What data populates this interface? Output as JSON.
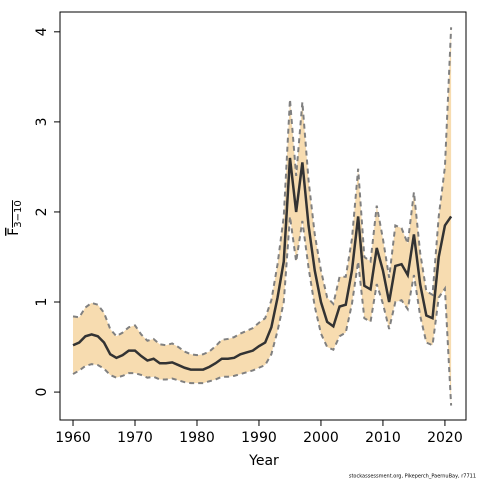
{
  "chart_data": {
    "type": "band_line",
    "xlabel": "Year",
    "ylabel": "F",
    "ylabel_sub": "3−10",
    "footer": "stockassessment.org, Pikeperch_PaernuBay, r7711",
    "line_color": "#333333",
    "band_color": "#f7dcb0",
    "band_edge_color": "#808080",
    "x": [
      1960,
      1961,
      1962,
      1963,
      1964,
      1965,
      1966,
      1967,
      1968,
      1969,
      1970,
      1971,
      1972,
      1973,
      1974,
      1975,
      1976,
      1977,
      1978,
      1979,
      1980,
      1981,
      1982,
      1983,
      1984,
      1985,
      1986,
      1987,
      1988,
      1989,
      1990,
      1991,
      1992,
      1993,
      1994,
      1995,
      1996,
      1997,
      1998,
      1999,
      2000,
      2001,
      2002,
      2003,
      2004,
      2005,
      2006,
      2007,
      2008,
      2009,
      2010,
      2011,
      2012,
      2013,
      2014,
      2015,
      2016,
      2017,
      2018,
      2019,
      2020,
      2021
    ],
    "values": [
      0.52,
      0.55,
      0.62,
      0.64,
      0.62,
      0.55,
      0.42,
      0.38,
      0.41,
      0.46,
      0.46,
      0.4,
      0.35,
      0.37,
      0.32,
      0.32,
      0.33,
      0.3,
      0.27,
      0.25,
      0.25,
      0.25,
      0.28,
      0.32,
      0.37,
      0.37,
      0.38,
      0.42,
      0.44,
      0.46,
      0.51,
      0.55,
      0.72,
      1.05,
      1.45,
      2.6,
      2.0,
      2.55,
      1.85,
      1.35,
      1.0,
      0.78,
      0.73,
      0.95,
      0.97,
      1.35,
      1.95,
      1.18,
      1.14,
      1.6,
      1.35,
      1.0,
      1.4,
      1.42,
      1.3,
      1.75,
      1.2,
      0.85,
      0.82,
      1.5,
      1.85,
      1.95
    ],
    "upper": [
      0.84,
      0.83,
      0.94,
      0.99,
      0.97,
      0.88,
      0.7,
      0.62,
      0.66,
      0.72,
      0.74,
      0.64,
      0.57,
      0.59,
      0.53,
      0.52,
      0.54,
      0.5,
      0.45,
      0.42,
      0.41,
      0.42,
      0.45,
      0.51,
      0.58,
      0.59,
      0.61,
      0.65,
      0.68,
      0.71,
      0.77,
      0.82,
      1.02,
      1.42,
      1.95,
      3.25,
      2.4,
      3.22,
      2.35,
      1.75,
      1.35,
      1.05,
      0.98,
      1.28,
      1.28,
      1.7,
      2.48,
      1.5,
      1.45,
      2.07,
      1.7,
      1.27,
      1.85,
      1.82,
      1.65,
      2.22,
      1.55,
      1.12,
      1.08,
      1.95,
      2.5,
      4.05
    ],
    "lower": [
      0.2,
      0.24,
      0.29,
      0.31,
      0.3,
      0.26,
      0.19,
      0.16,
      0.18,
      0.21,
      0.21,
      0.19,
      0.16,
      0.17,
      0.14,
      0.14,
      0.15,
      0.13,
      0.11,
      0.1,
      0.1,
      0.1,
      0.12,
      0.14,
      0.17,
      0.17,
      0.18,
      0.2,
      0.22,
      0.24,
      0.27,
      0.3,
      0.42,
      0.68,
      1.0,
      1.95,
      1.45,
      1.9,
      1.38,
      0.95,
      0.65,
      0.5,
      0.47,
      0.62,
      0.66,
      0.98,
      1.45,
      0.82,
      0.78,
      1.2,
      0.98,
      0.7,
      1.0,
      1.02,
      0.92,
      1.3,
      0.85,
      0.55,
      0.52,
      1.05,
      1.15,
      -0.15
    ],
    "xlim": [
      1957.9,
      2023.4
    ],
    "ylim": [
      -0.31,
      4.22
    ],
    "xticks": [
      1960,
      1970,
      1980,
      1990,
      2000,
      2010,
      2020
    ],
    "yticks": [
      0,
      1,
      2,
      3,
      4
    ]
  }
}
